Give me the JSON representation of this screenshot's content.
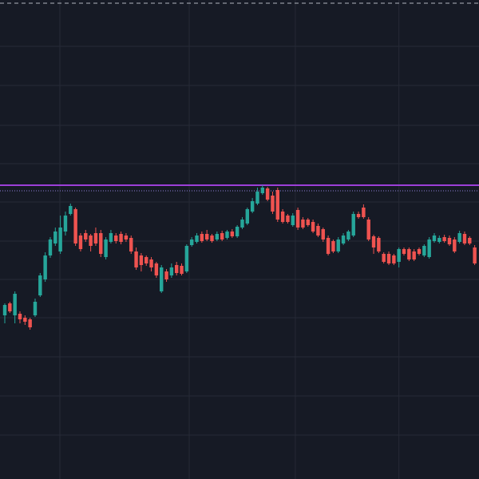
{
  "chart_data": {
    "type": "candlestick",
    "background": "#161a25",
    "grid": true,
    "grid_color": "#262a36",
    "up_color": "#26a69a",
    "down_color": "#ef5350",
    "ylim": [
      0,
      600
    ],
    "yticks": [
      542,
      493,
      443,
      395,
      347,
      298,
      250,
      202,
      153,
      104,
      55
    ],
    "xlim": [
      -0.95,
      93.85
    ],
    "xticks": [
      10.9,
      36.5,
      57.5,
      78
    ],
    "open": [
      205,
      220,
      205,
      207,
      202,
      200,
      205,
      230,
      250,
      280,
      295,
      285,
      310,
      332,
      338,
      305,
      308,
      305,
      308,
      308,
      278,
      297,
      305,
      307,
      305,
      302,
      285,
      280,
      278,
      275,
      270,
      235,
      260,
      255,
      268,
      267,
      260,
      293,
      297,
      307,
      307,
      305,
      300,
      308,
      302,
      310,
      304,
      315,
      320,
      335,
      345,
      358,
      364,
      355,
      362,
      335,
      330,
      318,
      337,
      325,
      325,
      322,
      317,
      313,
      302,
      298,
      285,
      295,
      300,
      305,
      332,
      340,
      325,
      304,
      302,
      282,
      282,
      280,
      272,
      288,
      288,
      285,
      288,
      280,
      278,
      298,
      297,
      303,
      302,
      300,
      297,
      307,
      302,
      290
    ],
    "high": [
      220,
      222,
      235,
      210,
      205,
      202,
      226,
      258,
      284,
      303,
      315,
      330,
      335,
      345,
      340,
      308,
      312,
      307,
      315,
      312,
      303,
      312,
      308,
      310,
      308,
      305,
      290,
      283,
      280,
      278,
      272,
      268,
      263,
      270,
      272,
      270,
      294,
      303,
      308,
      310,
      312,
      307,
      310,
      311,
      312,
      313,
      318,
      328,
      340,
      352,
      365,
      368,
      366,
      360,
      365,
      338,
      332,
      333,
      340,
      328,
      327,
      325,
      320,
      315,
      305,
      300,
      303,
      308,
      312,
      335,
      335,
      344,
      328,
      306,
      304,
      284,
      285,
      282,
      290,
      290,
      290,
      288,
      290,
      294,
      303,
      308,
      305,
      306,
      305,
      303,
      311,
      310,
      304,
      293
    ],
    "low": [
      195,
      208,
      195,
      195,
      193,
      187,
      203,
      228,
      247,
      277,
      292,
      282,
      305,
      330,
      292,
      285,
      297,
      285,
      292,
      278,
      275,
      295,
      295,
      294,
      297,
      282,
      262,
      260,
      267,
      260,
      252,
      233,
      247,
      252,
      255,
      255,
      258,
      291,
      295,
      296,
      298,
      296,
      298,
      298,
      300,
      302,
      302,
      313,
      318,
      333,
      343,
      356,
      348,
      332,
      322,
      320,
      320,
      316,
      312,
      313,
      316,
      308,
      303,
      297,
      280,
      283,
      283,
      293,
      298,
      303,
      326,
      326,
      298,
      282,
      283,
      270,
      268,
      268,
      265,
      280,
      273,
      273,
      280,
      278,
      276,
      296,
      295,
      296,
      292,
      283,
      295,
      293,
      293,
      268
    ],
    "close": [
      218,
      210,
      232,
      200,
      197,
      190,
      222,
      255,
      280,
      300,
      310,
      315,
      330,
      342,
      295,
      288,
      300,
      292,
      295,
      282,
      300,
      308,
      298,
      297,
      300,
      285,
      265,
      268,
      270,
      265,
      255,
      265,
      250,
      265,
      258,
      257,
      292,
      300,
      305,
      298,
      300,
      298,
      307,
      300,
      310,
      304,
      316,
      325,
      338,
      348,
      360,
      365,
      350,
      335,
      325,
      322,
      322,
      330,
      315,
      315,
      318,
      310,
      305,
      300,
      282,
      285,
      300,
      305,
      310,
      332,
      328,
      328,
      300,
      290,
      285,
      272,
      270,
      270,
      288,
      282,
      275,
      275,
      282,
      292,
      300,
      305,
      302,
      298,
      294,
      285,
      308,
      295,
      295,
      270
    ],
    "lines": [
      {
        "value": 596,
        "color": "#b2b5be",
        "style": "dashed"
      },
      {
        "value": 368,
        "color": "#9c3fd8",
        "style": "solid"
      },
      {
        "value": 361,
        "color": "#8e7fd6",
        "style": "dotted"
      }
    ]
  }
}
